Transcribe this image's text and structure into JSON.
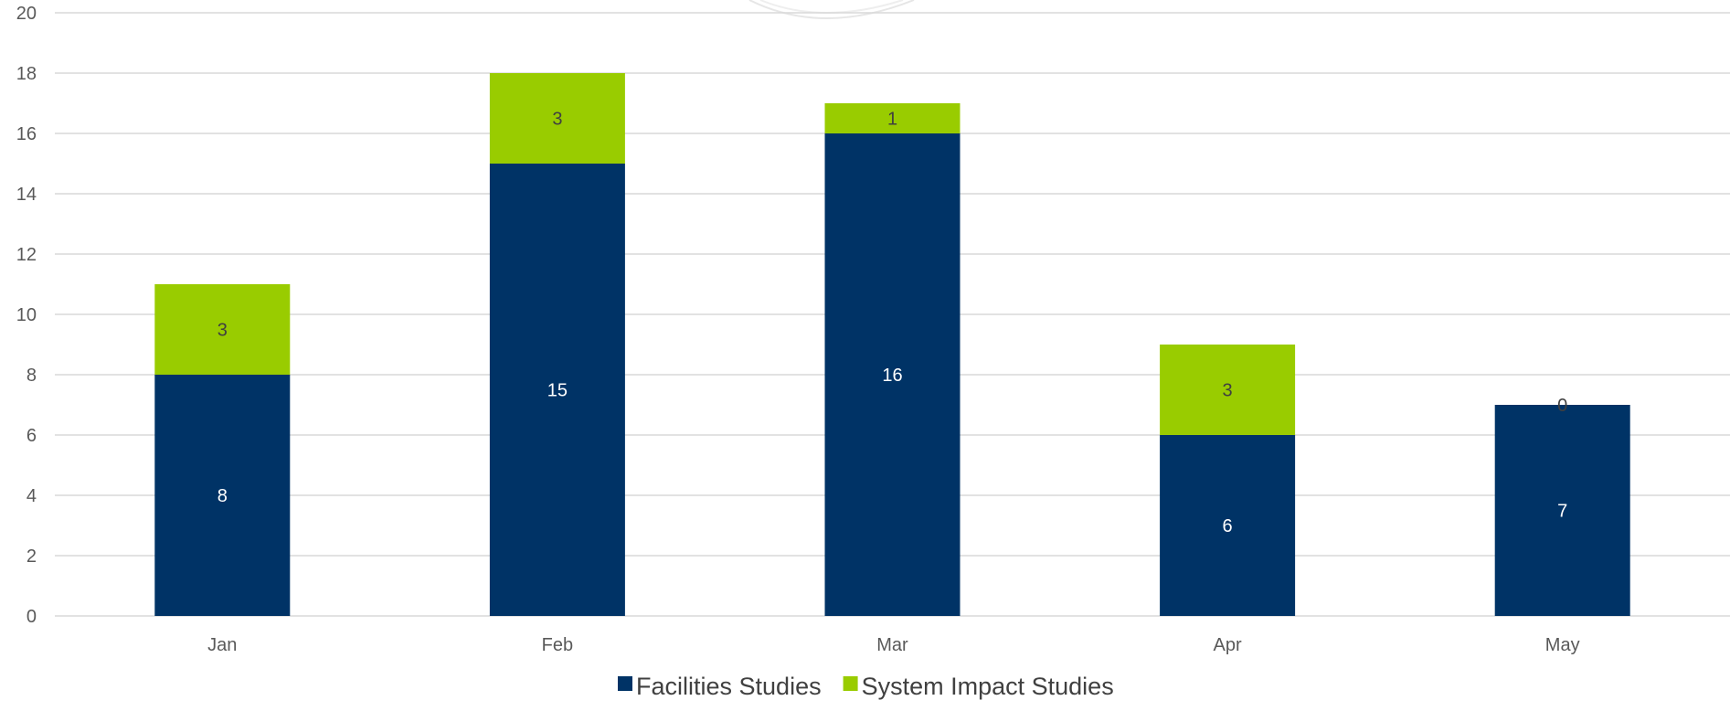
{
  "chart_data": {
    "type": "bar",
    "stacked": true,
    "categories": [
      "Jan",
      "Feb",
      "Mar",
      "Apr",
      "May"
    ],
    "series": [
      {
        "name": "Facilities Studies",
        "values": [
          8,
          15,
          16,
          6,
          7
        ],
        "color": "#003366",
        "label_color": "#ffffff"
      },
      {
        "name": "System Impact Studies",
        "values": [
          3,
          3,
          1,
          3,
          0
        ],
        "color": "#99cc00",
        "label_color": "#404040"
      }
    ],
    "ylim": [
      0,
      20
    ],
    "yticks": [
      0,
      2,
      4,
      6,
      8,
      10,
      12,
      14,
      16,
      18,
      20
    ],
    "grid": true,
    "legend_position": "bottom",
    "gridline_color": "#d9d9d9"
  }
}
